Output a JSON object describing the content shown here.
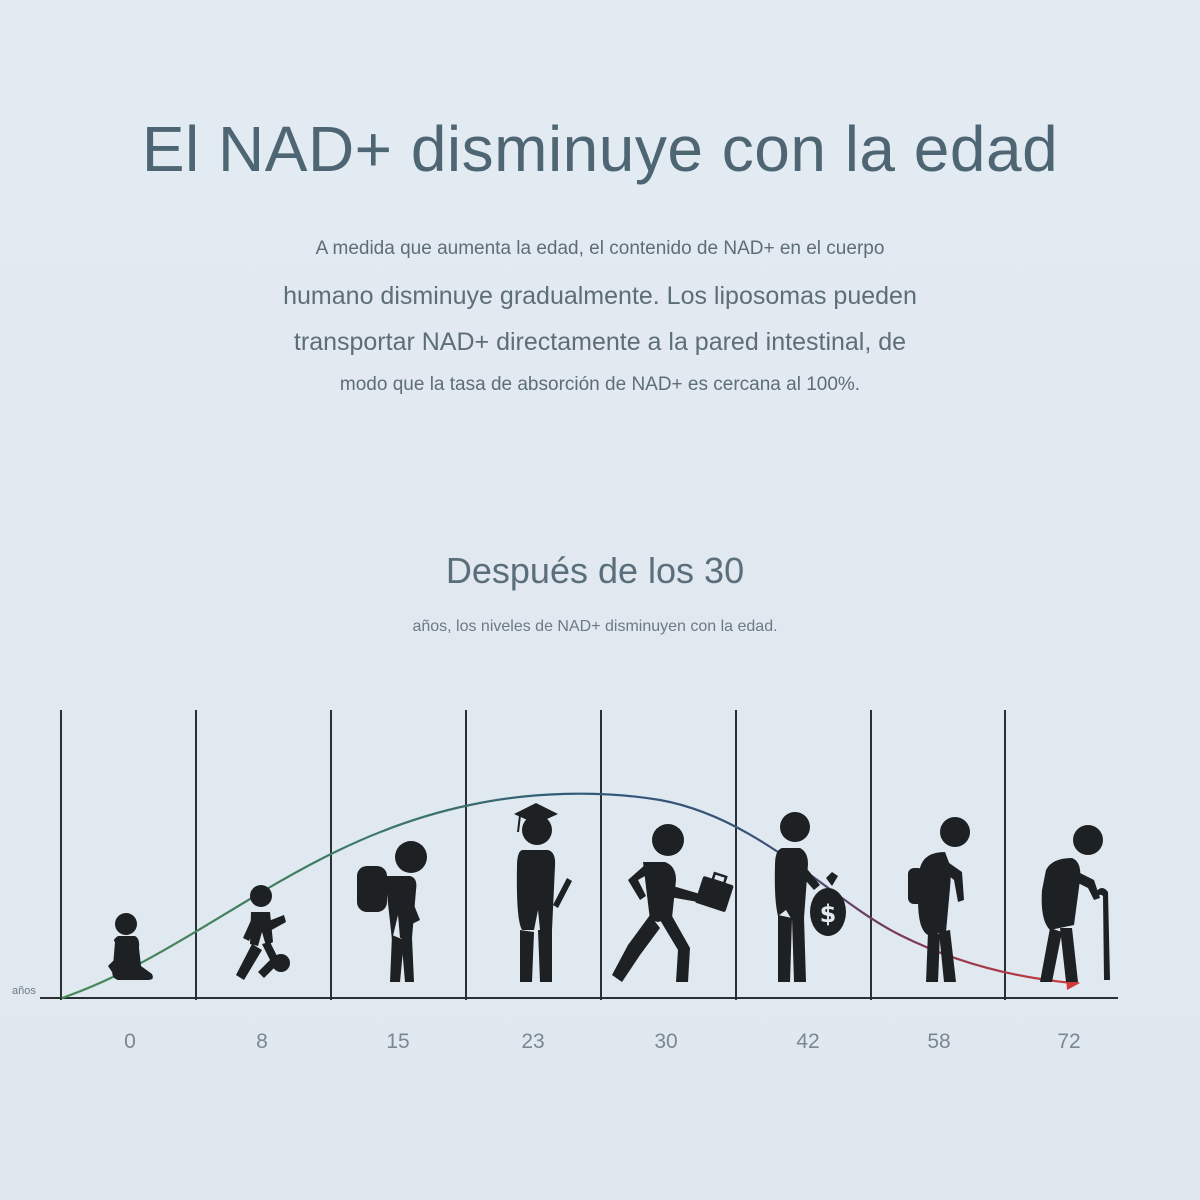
{
  "header": {
    "title": "El NAD+ disminuye con la edad",
    "description": [
      "A medida que aumenta la edad, el contenido de NAD+ en el cuerpo",
      "humano disminuye gradualmente. Los liposomas pueden",
      "transportar NAD+ directamente a la pared intestinal, de",
      "modo que la tasa de absorción de NAD+ es cercana al 100%."
    ]
  },
  "figure": {
    "subtitle": "Después de los 30",
    "caption": "años, los niveles de NAD+ disminuyen con la edad.",
    "axis_unit": "años",
    "stages": [
      {
        "age": "0",
        "figure": "baby-icon"
      },
      {
        "age": "8",
        "figure": "child-with-ball-icon"
      },
      {
        "age": "15",
        "figure": "student-with-backpack-icon"
      },
      {
        "age": "23",
        "figure": "graduate-icon"
      },
      {
        "age": "30",
        "figure": "worker-with-briefcase-icon"
      },
      {
        "age": "42",
        "figure": "adult-with-money-bag-icon"
      },
      {
        "age": "58",
        "figure": "older-adult-icon"
      },
      {
        "age": "72",
        "figure": "elderly-with-cane-icon"
      }
    ],
    "colors": {
      "rise": "#4a8a5a",
      "peak": "#2f5a78",
      "decline": "#d03a3a",
      "figures": "#1d2124"
    }
  }
}
